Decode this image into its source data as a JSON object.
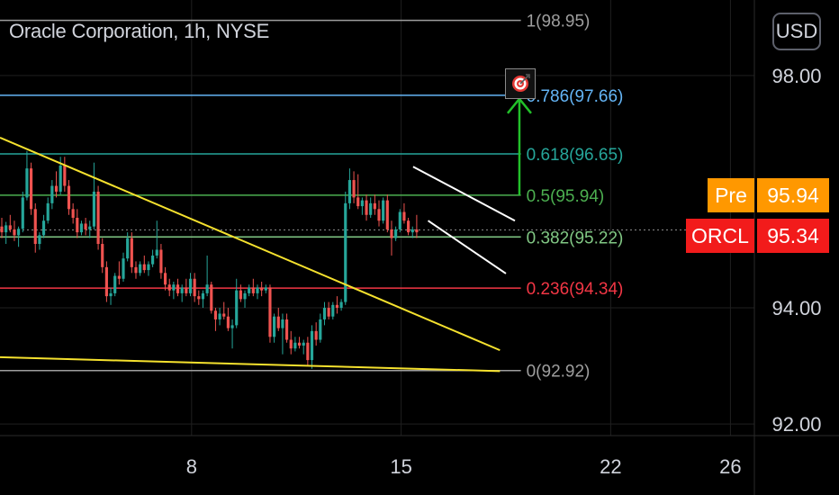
{
  "header": {
    "symbol_title": "Oracle Corporation, 1h, NYSE",
    "currency_button": "USD"
  },
  "colors": {
    "background": "#000000",
    "bull": "#26a69a",
    "bear": "#ef5350",
    "trendline": "#f5e12e",
    "channel": "#ffffff",
    "target_arrow": "#22c02a",
    "fib_1": "#9e9e9e",
    "fib_0786": "#64b5f6",
    "fib_0618": "#26a69a",
    "fib_05": "#4caf50",
    "fib_0382": "#81c784",
    "fib_0236": "#f23645",
    "fib_0": "#9e9e9e",
    "pre_badge": "#ff9800",
    "last_badge": "#f21b1b"
  },
  "badges": {
    "pre_label": "Pre",
    "pre_value": "95.94",
    "ticker_label": "ORCL",
    "ticker_value": "95.34"
  },
  "icons": {
    "target": "target-icon",
    "arrow": "arrow-up-icon"
  },
  "chart_data": {
    "type": "candlestick",
    "title": "Oracle Corporation, 1h, NYSE",
    "ylim": [
      91.8,
      99.3
    ],
    "xlim": [
      1.6,
      26.8
    ],
    "y_ticks": [
      "92.00",
      "94.00",
      "98.00"
    ],
    "x_ticks": [
      {
        "x": 8,
        "label": "8"
      },
      {
        "x": 15,
        "label": "15"
      },
      {
        "x": 22,
        "label": "22"
      },
      {
        "x": 26,
        "label": "26"
      }
    ],
    "fib_levels": [
      {
        "ratio": 1,
        "price": 98.95,
        "label": "1(98.95)"
      },
      {
        "ratio": 0.786,
        "price": 97.66,
        "label": "0.786(97.66)"
      },
      {
        "ratio": 0.618,
        "price": 96.65,
        "label": "0.618(96.65)"
      },
      {
        "ratio": 0.5,
        "price": 95.94,
        "label": "0.5(95.94)"
      },
      {
        "ratio": 0.382,
        "price": 95.22,
        "label": "0.382(95.22)"
      },
      {
        "ratio": 0.236,
        "price": 94.34,
        "label": "0.236(94.34)"
      },
      {
        "ratio": 0,
        "price": 92.92,
        "label": "0(92.92)"
      }
    ],
    "fib_range": [
      1.6,
      19.0
    ],
    "current_price": 95.34,
    "trendlines": [
      {
        "name": "descending-resistance",
        "points": [
          [
            1.6,
            96.93
          ],
          [
            18.3,
            93.27
          ]
        ]
      },
      {
        "name": "support",
        "points": [
          [
            1.6,
            93.15
          ],
          [
            18.3,
            92.91
          ]
        ]
      },
      {
        "name": "channel-upper",
        "points": [
          [
            15.4,
            96.43
          ],
          [
            18.8,
            95.5
          ]
        ]
      },
      {
        "name": "channel-lower",
        "points": [
          [
            15.9,
            95.5
          ],
          [
            18.5,
            94.59
          ]
        ]
      }
    ],
    "target_arrow": {
      "x": 18.95,
      "from": 95.94,
      "to": 97.66
    },
    "candles_start_x": 1.6,
    "candles_step": 0.14,
    "candles": [
      [
        95.4,
        95.55,
        95.2,
        95.3
      ],
      [
        95.3,
        95.48,
        95.1,
        95.42
      ],
      [
        95.42,
        95.6,
        95.3,
        95.35
      ],
      [
        95.35,
        95.5,
        95.15,
        95.25
      ],
      [
        95.25,
        95.4,
        95.05,
        95.36
      ],
      [
        95.36,
        96.0,
        95.3,
        95.9
      ],
      [
        95.9,
        96.7,
        95.85,
        96.4
      ],
      [
        96.4,
        96.5,
        95.6,
        95.7
      ],
      [
        95.7,
        95.8,
        94.95,
        95.1
      ],
      [
        95.1,
        95.3,
        95.0,
        95.25
      ],
      [
        95.25,
        95.6,
        95.2,
        95.5
      ],
      [
        95.5,
        95.9,
        95.45,
        95.8
      ],
      [
        95.8,
        96.2,
        95.7,
        96.1
      ],
      [
        96.1,
        96.35,
        95.9,
        96.0
      ],
      [
        96.0,
        96.6,
        95.95,
        96.45
      ],
      [
        96.45,
        96.6,
        96.0,
        96.1
      ],
      [
        96.1,
        96.2,
        95.6,
        95.7
      ],
      [
        95.7,
        95.8,
        95.45,
        95.55
      ],
      [
        95.55,
        95.7,
        95.2,
        95.3
      ],
      [
        95.3,
        95.5,
        95.25,
        95.45
      ],
      [
        95.45,
        95.55,
        95.25,
        95.35
      ],
      [
        95.35,
        95.5,
        95.2,
        95.4
      ],
      [
        95.4,
        96.5,
        95.35,
        96.0
      ],
      [
        96.0,
        96.1,
        95.0,
        95.1
      ],
      [
        95.1,
        95.2,
        94.6,
        94.7
      ],
      [
        94.7,
        94.8,
        94.1,
        94.2
      ],
      [
        94.2,
        94.35,
        94.05,
        94.25
      ],
      [
        94.25,
        94.6,
        94.2,
        94.55
      ],
      [
        94.55,
        94.8,
        94.4,
        94.5
      ],
      [
        94.5,
        94.95,
        94.45,
        94.85
      ],
      [
        94.85,
        95.3,
        94.8,
        95.2
      ],
      [
        95.2,
        95.3,
        94.6,
        94.7
      ],
      [
        94.7,
        94.8,
        94.5,
        94.6
      ],
      [
        94.6,
        94.8,
        94.55,
        94.75
      ],
      [
        94.75,
        94.9,
        94.6,
        94.65
      ],
      [
        94.65,
        94.8,
        94.55,
        94.75
      ],
      [
        94.75,
        95.0,
        94.7,
        94.9
      ],
      [
        94.9,
        95.5,
        94.85,
        95.0
      ],
      [
        95.0,
        95.1,
        94.5,
        94.6
      ],
      [
        94.6,
        94.7,
        94.3,
        94.4
      ],
      [
        94.4,
        94.5,
        94.2,
        94.3
      ],
      [
        94.3,
        94.45,
        94.15,
        94.4
      ],
      [
        94.4,
        94.5,
        94.2,
        94.25
      ],
      [
        94.25,
        94.4,
        94.1,
        94.35
      ],
      [
        94.35,
        94.5,
        94.2,
        94.25
      ],
      [
        94.25,
        94.6,
        94.2,
        94.5
      ],
      [
        94.5,
        94.6,
        94.1,
        94.2
      ],
      [
        94.2,
        94.3,
        94.05,
        94.15
      ],
      [
        94.15,
        94.3,
        94.0,
        94.25
      ],
      [
        94.25,
        94.9,
        94.2,
        94.4
      ],
      [
        94.4,
        94.45,
        93.9,
        93.95
      ],
      [
        93.95,
        94.0,
        93.6,
        93.8
      ],
      [
        93.8,
        94.0,
        93.7,
        93.9
      ],
      [
        93.9,
        94.1,
        93.8,
        93.85
      ],
      [
        93.85,
        94.0,
        93.6,
        93.65
      ],
      [
        93.65,
        93.8,
        93.3,
        93.7
      ],
      [
        93.7,
        94.5,
        93.65,
        94.3
      ],
      [
        94.3,
        94.4,
        94.1,
        94.15
      ],
      [
        94.15,
        94.3,
        94.0,
        94.25
      ],
      [
        94.25,
        94.4,
        94.2,
        94.35
      ],
      [
        94.35,
        94.5,
        94.2,
        94.25
      ],
      [
        94.25,
        94.4,
        94.15,
        94.35
      ],
      [
        94.35,
        94.45,
        94.2,
        94.3
      ],
      [
        94.3,
        94.4,
        94.25,
        94.35
      ],
      [
        94.35,
        94.4,
        93.4,
        93.5
      ],
      [
        93.5,
        93.9,
        93.4,
        93.85
      ],
      [
        93.85,
        94.0,
        93.6,
        93.65
      ],
      [
        93.65,
        93.9,
        93.2,
        93.8
      ],
      [
        93.8,
        93.9,
        93.4,
        93.45
      ],
      [
        93.45,
        93.6,
        93.2,
        93.3
      ],
      [
        93.3,
        93.5,
        93.25,
        93.4
      ],
      [
        93.4,
        93.5,
        93.3,
        93.35
      ],
      [
        93.35,
        93.45,
        93.2,
        93.4
      ],
      [
        93.4,
        93.5,
        93.0,
        93.1
      ],
      [
        93.1,
        93.7,
        92.95,
        93.6
      ],
      [
        93.6,
        93.75,
        93.35,
        93.45
      ],
      [
        93.45,
        93.9,
        93.4,
        93.8
      ],
      [
        93.8,
        94.1,
        93.7,
        94.0
      ],
      [
        94.0,
        94.1,
        93.8,
        93.85
      ],
      [
        93.85,
        94.1,
        93.8,
        94.05
      ],
      [
        94.05,
        94.2,
        93.9,
        94.0
      ],
      [
        94.0,
        94.15,
        93.95,
        94.1
      ],
      [
        94.1,
        96.0,
        94.05,
        95.8
      ],
      [
        95.8,
        96.4,
        95.7,
        96.2
      ],
      [
        96.2,
        96.35,
        95.8,
        95.9
      ],
      [
        95.9,
        96.3,
        95.7,
        95.75
      ],
      [
        95.75,
        95.9,
        95.6,
        95.85
      ],
      [
        95.85,
        95.95,
        95.5,
        95.6
      ],
      [
        95.6,
        95.9,
        95.55,
        95.8
      ],
      [
        95.8,
        95.95,
        95.6,
        95.7
      ],
      [
        95.7,
        95.85,
        95.4,
        95.5
      ],
      [
        95.5,
        95.9,
        95.45,
        95.85
      ],
      [
        95.85,
        95.95,
        95.3,
        95.35
      ],
      [
        95.35,
        95.5,
        94.9,
        95.2
      ],
      [
        95.2,
        95.4,
        95.15,
        95.35
      ],
      [
        95.35,
        95.7,
        95.3,
        95.65
      ],
      [
        95.65,
        95.8,
        95.45,
        95.5
      ],
      [
        95.5,
        95.55,
        95.25,
        95.3
      ],
      [
        95.3,
        95.4,
        95.2,
        95.35
      ],
      [
        95.35,
        95.6,
        95.2,
        95.3
      ]
    ]
  }
}
